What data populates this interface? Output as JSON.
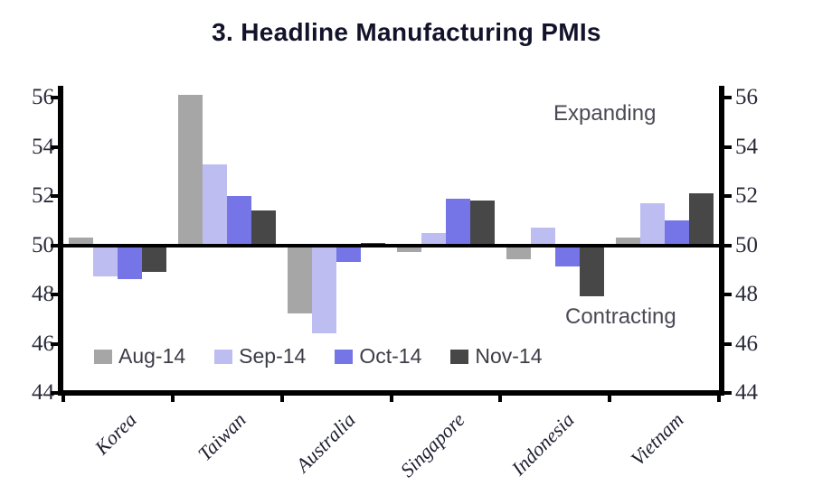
{
  "chart_data": {
    "type": "bar",
    "title": "3. Headline Manufacturing PMIs",
    "baseline": 50,
    "ylim": [
      44,
      56
    ],
    "yticks": [
      56,
      54,
      52,
      50,
      48,
      46,
      44
    ],
    "grid": false,
    "legend_position": "bottom-inside",
    "categories": [
      "Korea",
      "Taiwan",
      "Australia",
      "Singapore",
      "Indonesia",
      "Vietnam"
    ],
    "series": [
      {
        "name": "Aug-14",
        "color": "#a6a6a6",
        "values": [
          50.3,
          56.1,
          47.3,
          49.8,
          49.5,
          50.3
        ]
      },
      {
        "name": "Sep-14",
        "color": "#bdbdf2",
        "values": [
          48.8,
          53.3,
          46.5,
          50.5,
          50.7,
          51.7
        ]
      },
      {
        "name": "Oct-14",
        "color": "#7575e7",
        "values": [
          48.7,
          52.0,
          49.4,
          51.9,
          49.2,
          51.0
        ]
      },
      {
        "name": "Nov-14",
        "color": "#474747",
        "values": [
          49.0,
          51.4,
          50.1,
          51.8,
          48.0,
          52.1
        ]
      }
    ],
    "annotations": {
      "expanding": "Expanding",
      "contracting": "Contracting"
    },
    "axis_color": "#000000"
  }
}
